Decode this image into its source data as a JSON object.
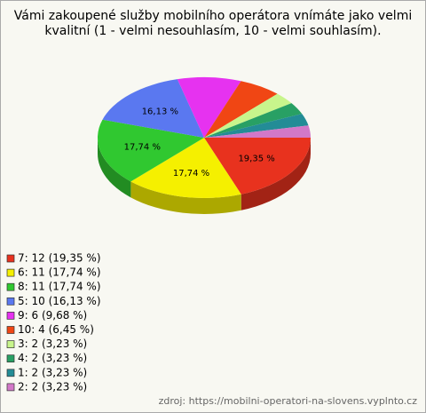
{
  "chart_data": {
    "type": "pie3d",
    "title": [
      "Vámi zakoupené služby mobilního operátora vnímáte jako velmi",
      "kvalitní (1 - velmi nesouhlasím, 10 - velmi souhlasím)."
    ],
    "categories": [
      "7: 12 (19,35 %)",
      "6: 11 (17,74 %)",
      "8: 11 (17,74 %)",
      "5: 10 (16,13 %)",
      "9: 6 (9,68 %)",
      "10: 4 (6,45 %)",
      "3: 2 (3,23 %)",
      "4: 2 (3,23 %)",
      "1: 2 (3,23 %)",
      "2: 2 (3,23 %)"
    ],
    "values": [
      19.35,
      17.74,
      17.74,
      16.13,
      9.68,
      6.45,
      3.23,
      3.23,
      3.23,
      3.23
    ],
    "value_labels": [
      "19,35 %",
      "17,74 %",
      "17,74 %",
      "16,13 %",
      null,
      null,
      null,
      null,
      null,
      null
    ],
    "colors": [
      "#e8321e",
      "#f5f000",
      "#30c830",
      "#5a78f0",
      "#e632f0",
      "#f04614",
      "#c8f58c",
      "#28a064",
      "#238c96",
      "#d278c8"
    ],
    "source": "zdroj: https://mobilni-operatori-na-slovens.vyplnto.cz"
  }
}
